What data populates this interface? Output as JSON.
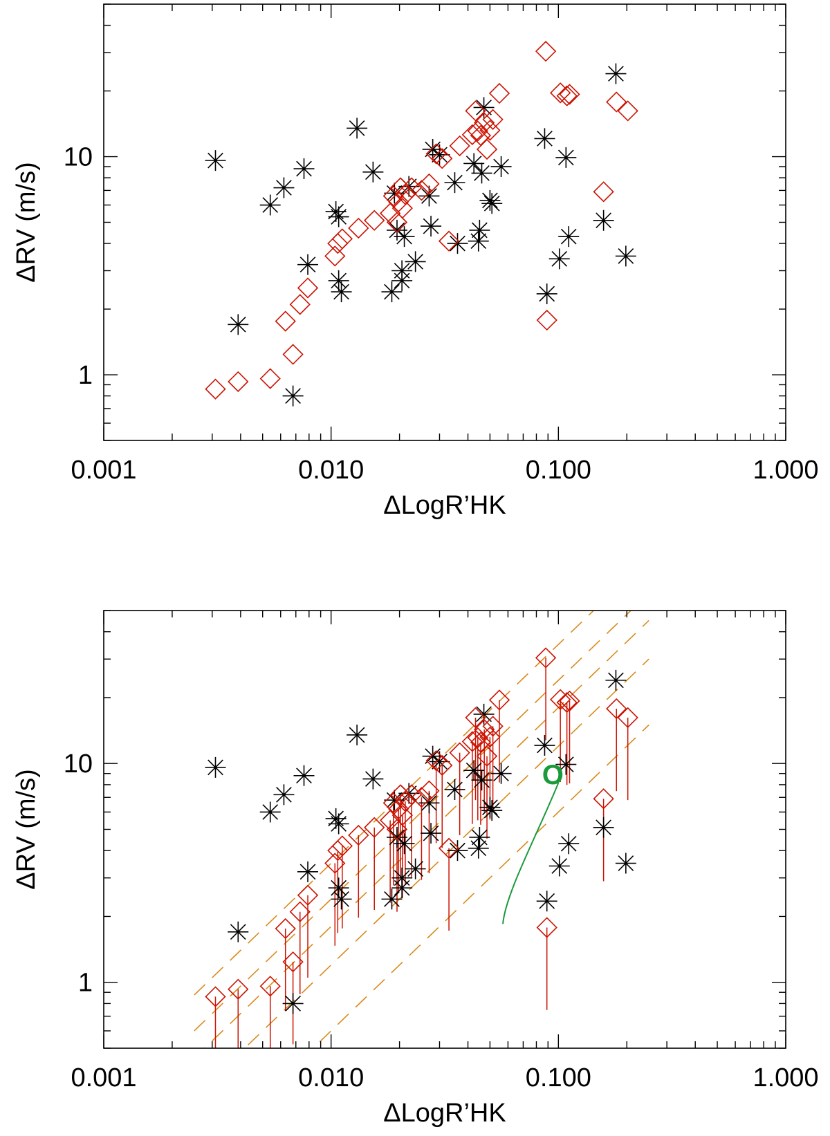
{
  "figure": {
    "panels": [
      "top",
      "bottom"
    ]
  },
  "colors": {
    "axis": "#000000",
    "star": "#000000",
    "diamond": "#cc1100",
    "errorbar": "#cc1100",
    "dashed": "#d98a1a",
    "curve": "#1a9a3a",
    "marker": "#1a9a3a"
  },
  "chart_data": [
    {
      "type": "scatter",
      "panel": "top",
      "xscale": "log",
      "yscale": "log",
      "xlabel": "ΔLogR’HK",
      "ylabel": "ΔRV (m/s)",
      "xlim": [
        0.001,
        1.0
      ],
      "ylim": [
        0.5,
        50
      ],
      "x_ticks": [
        0.001,
        0.01,
        0.1,
        1.0
      ],
      "x_tick_labels": [
        "0.001",
        "0.010",
        "0.100",
        "1.000"
      ],
      "y_ticks": [
        1,
        10
      ],
      "y_tick_labels": [
        "1",
        "10"
      ],
      "series": [
        {
          "name": "stars",
          "marker": "asterisk",
          "points": [
            [
              0.0031,
              9.6
            ],
            [
              0.0039,
              1.7
            ],
            [
              0.0054,
              6.0
            ],
            [
              0.0062,
              7.2
            ],
            [
              0.0068,
              0.8
            ],
            [
              0.0076,
              8.8
            ],
            [
              0.0079,
              3.2
            ],
            [
              0.0105,
              5.6
            ],
            [
              0.0108,
              5.3
            ],
            [
              0.0108,
              2.7
            ],
            [
              0.0111,
              2.4
            ],
            [
              0.013,
              13.5
            ],
            [
              0.0153,
              8.5
            ],
            [
              0.0185,
              2.4
            ],
            [
              0.019,
              6.8
            ],
            [
              0.0195,
              4.6
            ],
            [
              0.0205,
              3.0
            ],
            [
              0.0205,
              2.7
            ],
            [
              0.021,
              4.3
            ],
            [
              0.022,
              7.3
            ],
            [
              0.0235,
              3.3
            ],
            [
              0.027,
              6.6
            ],
            [
              0.0275,
              4.8
            ],
            [
              0.028,
              10.8
            ],
            [
              0.03,
              10.2
            ],
            [
              0.035,
              7.6
            ],
            [
              0.036,
              4.0
            ],
            [
              0.0425,
              9.3
            ],
            [
              0.0445,
              4.1
            ],
            [
              0.045,
              4.6
            ],
            [
              0.046,
              8.4
            ],
            [
              0.047,
              16.8
            ],
            [
              0.05,
              6.3
            ],
            [
              0.051,
              6.1
            ],
            [
              0.056,
              9.0
            ],
            [
              0.087,
              12.1
            ],
            [
              0.089,
              2.35
            ],
            [
              0.101,
              3.4
            ],
            [
              0.108,
              9.9
            ],
            [
              0.111,
              4.3
            ],
            [
              0.158,
              5.1
            ],
            [
              0.179,
              24.0
            ],
            [
              0.198,
              3.5
            ]
          ]
        },
        {
          "name": "diamonds",
          "marker": "diamond",
          "points": [
            [
              0.0031,
              0.86
            ],
            [
              0.0039,
              0.93
            ],
            [
              0.0054,
              0.96
            ],
            [
              0.0063,
              1.76
            ],
            [
              0.0068,
              1.24
            ],
            [
              0.0073,
              2.1
            ],
            [
              0.0079,
              2.5
            ],
            [
              0.0104,
              3.5
            ],
            [
              0.0107,
              4.0
            ],
            [
              0.0112,
              4.2
            ],
            [
              0.0132,
              4.7
            ],
            [
              0.0155,
              5.1
            ],
            [
              0.0182,
              5.5
            ],
            [
              0.0188,
              6.6
            ],
            [
              0.0195,
              5.0
            ],
            [
              0.0198,
              6.2
            ],
            [
              0.0202,
              7.2
            ],
            [
              0.0206,
              5.8
            ],
            [
              0.0212,
              6.7
            ],
            [
              0.0226,
              7.2
            ],
            [
              0.025,
              7.0
            ],
            [
              0.027,
              7.5
            ],
            [
              0.029,
              10.3
            ],
            [
              0.0308,
              9.8
            ],
            [
              0.033,
              4.1
            ],
            [
              0.0368,
              11.2
            ],
            [
              0.0418,
              12.6
            ],
            [
              0.0432,
              16.2
            ],
            [
              0.0442,
              13.1
            ],
            [
              0.0455,
              12.5
            ],
            [
              0.0472,
              14.3
            ],
            [
              0.0485,
              10.8
            ],
            [
              0.05,
              13.2
            ],
            [
              0.0515,
              14.8
            ],
            [
              0.055,
              19.5
            ],
            [
              0.088,
              30.4
            ],
            [
              0.089,
              1.78
            ],
            [
              0.102,
              19.6
            ],
            [
              0.109,
              19.0
            ],
            [
              0.112,
              19.3
            ],
            [
              0.158,
              6.9
            ],
            [
              0.18,
              17.8
            ],
            [
              0.202,
              16.2
            ]
          ]
        }
      ]
    },
    {
      "type": "scatter",
      "panel": "bottom",
      "xscale": "log",
      "yscale": "log",
      "xlabel": "ΔLogR’HK",
      "ylabel": "ΔRV (m/s)",
      "xlim": [
        0.001,
        1.0
      ],
      "ylim": [
        0.5,
        50
      ],
      "x_ticks": [
        0.001,
        0.01,
        0.1,
        1.0
      ],
      "x_tick_labels": [
        "0.001",
        "0.010",
        "0.100",
        "1.000"
      ],
      "y_ticks": [
        1,
        10
      ],
      "y_tick_labels": [
        "1",
        "10"
      ],
      "error_bars": "downward from each diamond",
      "dashed_lines": {
        "slope": 1.0,
        "x_range": [
          0.0025,
          0.25
        ],
        "coefficients": [
          350,
          240,
          180,
          120,
          60
        ]
      },
      "annotation": {
        "text": "O",
        "x": 0.1,
        "y": 8.9,
        "curve_points": [
          [
            0.1,
            8.9
          ],
          [
            0.075,
            3.5
          ],
          [
            0.061,
            2.2
          ],
          [
            0.057,
            1.85
          ]
        ]
      }
    }
  ]
}
